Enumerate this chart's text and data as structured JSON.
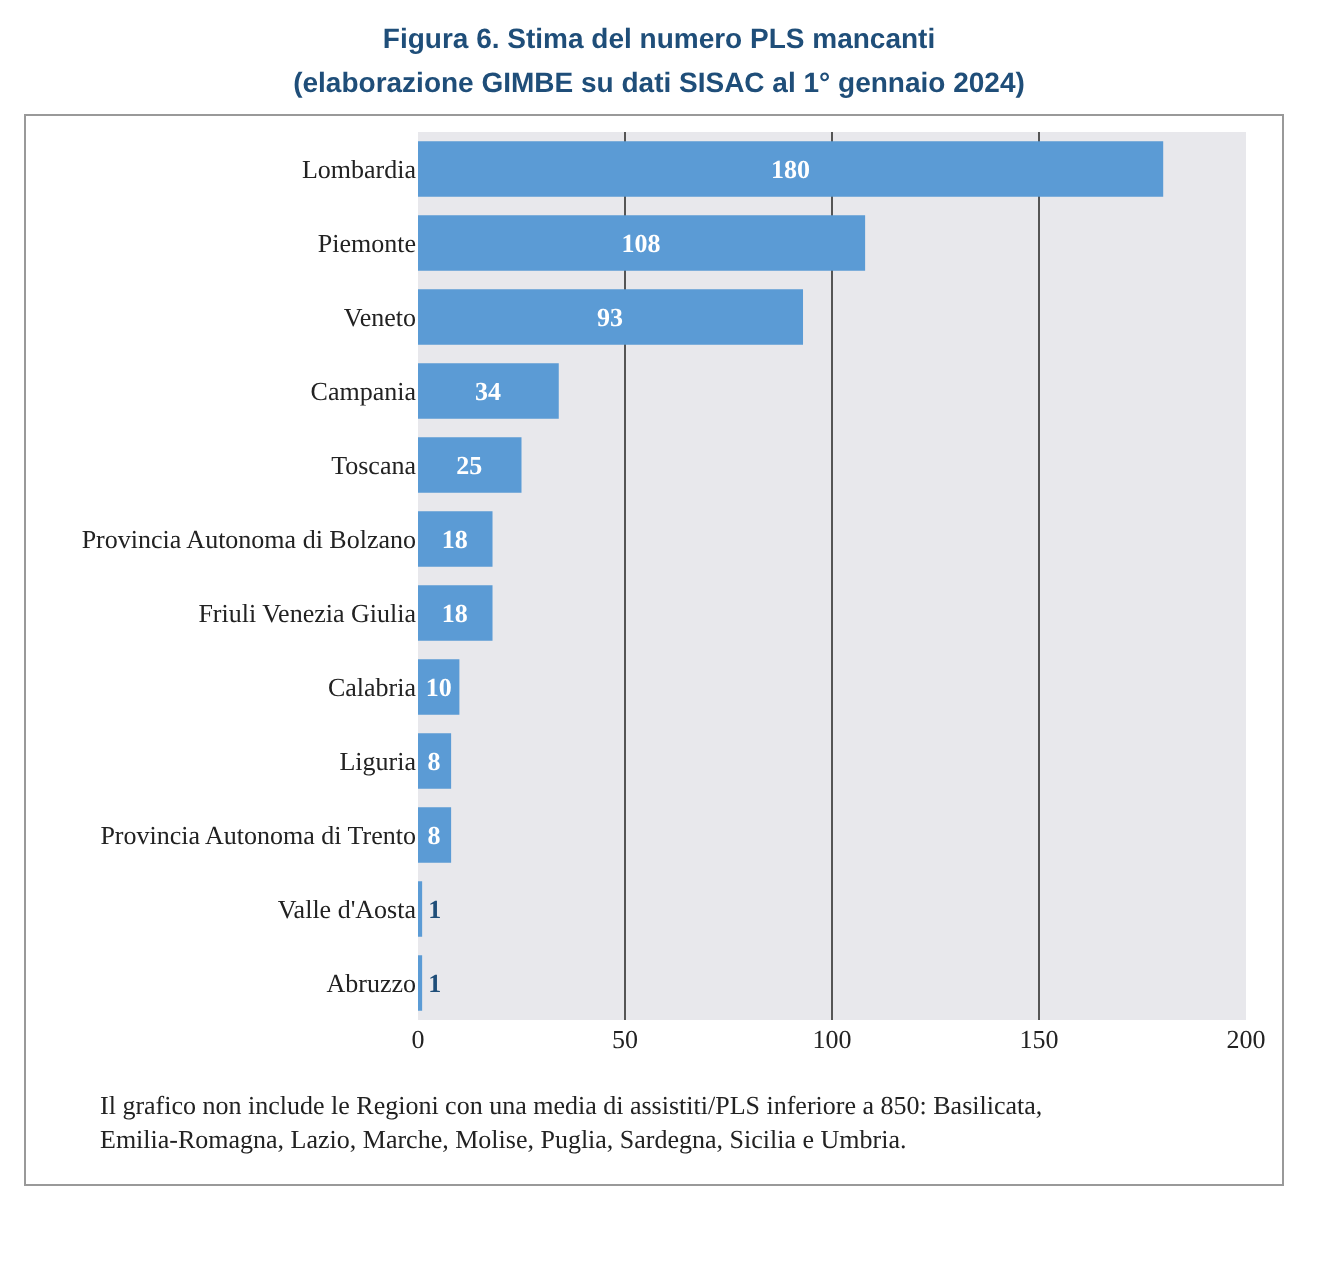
{
  "chart_data": {
    "type": "bar",
    "orientation": "horizontal",
    "title": "Figura 6. Stima del numero PLS mancanti\n(elaborazione GIMBE su dati SISAC al 1° gennaio 2024)",
    "categories": [
      "Lombardia",
      "Piemonte",
      "Veneto",
      "Campania",
      "Toscana",
      "Provincia Autonoma di Bolzano",
      "Friuli Venezia Giulia",
      "Calabria",
      "Liguria",
      "Provincia Autonoma di Trento",
      "Valle d'Aosta",
      "Abruzzo"
    ],
    "values": [
      180,
      108,
      93,
      34,
      25,
      18,
      18,
      10,
      8,
      8,
      1,
      1
    ],
    "color": "#5b9bd5",
    "data_labels": true,
    "xlim": [
      0,
      200
    ],
    "xticks": [
      0,
      50,
      100,
      150,
      200
    ],
    "grid": "x",
    "annotations": [
      "Il grafico non include le Regioni con una media di assistiti/PLS inferiore a 850: Basilicata, Emilia-Romagna, Lazio, Marche, Molise, Puglia, Sardegna, Sicilia e Umbria."
    ]
  }
}
